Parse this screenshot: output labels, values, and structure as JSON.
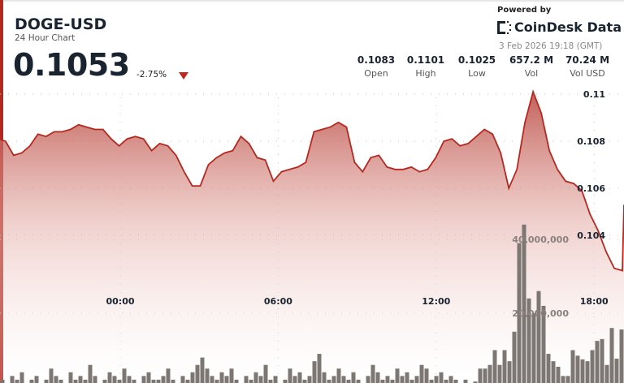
{
  "header": {
    "symbol": "DOGE-USD",
    "subtitle": "24 Hour Chart",
    "price": "0.1053",
    "change": "-2.75%",
    "change_direction": "down"
  },
  "branding": {
    "powered_by": "Powered by",
    "logo_text": "CoinDesk Data",
    "timestamp": "3 Feb 2026 19:18 (GMT)"
  },
  "stats": [
    {
      "value": "0.1083",
      "label": "Open"
    },
    {
      "value": "0.1101",
      "label": "High"
    },
    {
      "value": "0.1025",
      "label": "Low"
    },
    {
      "value": "657.2 M",
      "label": "Vol"
    },
    {
      "value": "70.24 M",
      "label": "Vol USD"
    }
  ],
  "colors": {
    "line": "#b5281f",
    "fill_top": "#c0504a",
    "volume": "#7c7772",
    "down": "#c0281e"
  },
  "chart_data": {
    "type": "line",
    "price_axis": {
      "ticks": [
        0.11,
        0.108,
        0.106,
        0.104
      ],
      "tick_labels": [
        "0.11",
        "0.108",
        "0.106",
        "0.104"
      ],
      "position": "right"
    },
    "volume_axis": {
      "ticks": [
        40000000,
        20000000
      ],
      "tick_labels": [
        "40,000,000",
        "20,000,000"
      ]
    },
    "x_axis": {
      "tick_labels": [
        "00:00",
        "06:00",
        "12:00",
        "18:00"
      ]
    },
    "grid": true,
    "price_series": {
      "start_time": "19:20",
      "interval_minutes": 18.5,
      "values": [
        0.1081,
        0.108,
        0.1074,
        0.1075,
        0.1078,
        0.1083,
        0.1082,
        0.1084,
        0.1084,
        0.1085,
        0.1087,
        0.1086,
        0.1085,
        0.1085,
        0.1081,
        0.1078,
        0.1081,
        0.1082,
        0.1081,
        0.1076,
        0.1079,
        0.1078,
        0.1074,
        0.1067,
        0.1061,
        0.1061,
        0.107,
        0.1073,
        0.1075,
        0.1076,
        0.1082,
        0.1079,
        0.1073,
        0.1072,
        0.1063,
        0.1067,
        0.1068,
        0.1069,
        0.1071,
        0.1084,
        0.1085,
        0.1086,
        0.1088,
        0.1086,
        0.1071,
        0.1067,
        0.1073,
        0.1074,
        0.1069,
        0.1068,
        0.1068,
        0.1069,
        0.1067,
        0.1068,
        0.1073,
        0.108,
        0.1081,
        0.1078,
        0.1079,
        0.1082,
        0.1085,
        0.1083,
        0.1075,
        0.106,
        0.1068,
        0.1088,
        0.1101,
        0.1092,
        0.1076,
        0.1068,
        0.1063,
        0.1062,
        0.1059,
        0.1049,
        0.1042,
        0.1033,
        0.1026,
        0.1025,
        0.1053
      ]
    },
    "volume_series": {
      "values": [
        2000000.0,
        1000000.0,
        3000000.0,
        2000000.0,
        4000000.0,
        1000000.0,
        2000000.0,
        3000000.0,
        1000000.0,
        2000000.0,
        5000000.0,
        3000000.0,
        2000000.0,
        1000000.0,
        4000000.0,
        2000000.0,
        3000000.0,
        2000000.0,
        6000000.0,
        3000000.0,
        1000000.0,
        2000000.0,
        4000000.0,
        3000000.0,
        2000000.0,
        5000000.0,
        3000000.0,
        2000000.0,
        1000000.0,
        3000000.0,
        4000000.0,
        2000000.0,
        2000000.0,
        3000000.0,
        5000000.0,
        2000000.0,
        1000000.0,
        3000000.0,
        2000000.0,
        4000000.0,
        6000000.0,
        8000000.0,
        5000000.0,
        3000000.0,
        2000000.0,
        4000000.0,
        3000000.0,
        5000000.0,
        2000000.0,
        1000000.0,
        3000000.0,
        2000000.0,
        4000000.0,
        3000000.0,
        6000000.0,
        2000000.0,
        3000000.0,
        1000000.0,
        2000000.0,
        5000000.0,
        3000000.0,
        4000000.0,
        2000000.0,
        3000000.0,
        7000000.0,
        9000000.0,
        4000000.0,
        2000000.0,
        3000000.0,
        5000000.0,
        3000000.0,
        2000000.0,
        4000000.0,
        2000000.0,
        1000000.0,
        3000000.0,
        6000000.0,
        4000000.0,
        2000000.0,
        3000000.0,
        2000000.0,
        5000000.0,
        3000000.0,
        4000000.0,
        2000000.0,
        3000000.0,
        6000000.0,
        5000000.0,
        2000000.0,
        3000000.0,
        4000000.0,
        2000000.0,
        3000000.0,
        2000000.0,
        1000000.0,
        2000000.0,
        1000000.0,
        1500000.0,
        5000000.0,
        5000000.0,
        6000000.0,
        10000000.0,
        6000000.0,
        10000000.0,
        7000000.0,
        15000000.0,
        39000000.0,
        44000000.0,
        24000000.0,
        20000000.0,
        26000000.0,
        22000000.0,
        9000000.0,
        7000000.0,
        5500000.0,
        3000000.0,
        3000000.0,
        10000000.0,
        8500000.0,
        7500000.0,
        7000000.0,
        10000000.0,
        12500000.0,
        13000000.0,
        6000000.0,
        16000000.0,
        7700000.0,
        15600000.0
      ]
    }
  }
}
